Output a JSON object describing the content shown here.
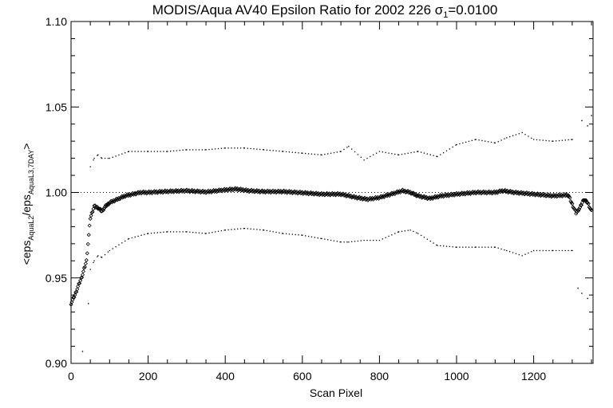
{
  "chart_data": {
    "type": "scatter",
    "title_prefix": "MODIS/Aqua AV40 Epsilon Ratio for 2002 226 ",
    "title_sigma_symbol": "σ",
    "title_sigma_sub": "1",
    "title_sigma_value": "=0.0100",
    "xlabel": "Scan Pixel",
    "ylabel_parts": {
      "open": "<eps",
      "sub1": "AquaL2",
      "mid": "/eps",
      "sub2": "AquaL3,7DAY",
      "close": ">"
    },
    "xlim": [
      0,
      1354
    ],
    "ylim": [
      0.9,
      1.1
    ],
    "x_ticks": [
      0,
      200,
      400,
      600,
      800,
      1000,
      1200
    ],
    "x_tick_labels": [
      "0",
      "200",
      "400",
      "600",
      "800",
      "1000",
      "1200"
    ],
    "y_ticks": [
      0.9,
      0.95,
      1.0,
      1.05,
      1.1
    ],
    "y_tick_labels": [
      "0.90",
      "0.95",
      "1.00",
      "1.05",
      "1.10"
    ],
    "reference_line": 1.0,
    "grid": false,
    "series": [
      {
        "style": "diamond",
        "x": [
          0,
          10,
          20,
          30,
          40,
          50,
          60,
          70,
          80,
          90,
          100,
          120,
          140,
          160,
          180,
          200,
          250,
          300,
          350,
          400,
          430,
          460,
          500,
          550,
          600,
          650,
          700,
          740,
          770,
          800,
          830,
          860,
          880,
          900,
          930,
          960,
          1000,
          1050,
          1100,
          1120,
          1150,
          1200,
          1250,
          1290,
          1300,
          1310,
          1320,
          1330,
          1340,
          1350
        ],
        "y": [
          0.935,
          0.94,
          0.946,
          0.952,
          0.96,
          0.985,
          0.992,
          0.991,
          0.989,
          0.992,
          0.994,
          0.996,
          0.998,
          0.999,
          1.0,
          1.0,
          1.0006,
          1.001,
          1.0003,
          1.0015,
          1.002,
          1.001,
          1.0005,
          1.0005,
          0.9998,
          0.999,
          0.999,
          0.997,
          0.996,
          0.997,
          0.999,
          1.001,
          1.0,
          0.998,
          0.9965,
          0.998,
          0.999,
          1.0,
          1.0,
          1.001,
          1.0,
          0.999,
          0.998,
          0.9985,
          0.993,
          0.988,
          0.991,
          0.996,
          0.994,
          0.989
        ]
      },
      {
        "style": "dot",
        "x": [
          50,
          60,
          70,
          80,
          100,
          150,
          200,
          250,
          300,
          350,
          400,
          450,
          500,
          550,
          600,
          650,
          700,
          720,
          760,
          800,
          850,
          900,
          950,
          1000,
          1050,
          1100,
          1130,
          1170,
          1200,
          1250,
          1300
        ],
        "y": [
          1.015,
          1.02,
          1.022,
          1.02,
          1.02,
          1.024,
          1.024,
          1.024,
          1.025,
          1.025,
          1.026,
          1.026,
          1.025,
          1.024,
          1.023,
          1.022,
          1.024,
          1.027,
          1.019,
          1.024,
          1.022,
          1.024,
          1.021,
          1.028,
          1.031,
          1.029,
          1.032,
          1.035,
          1.031,
          1.03,
          1.031
        ]
      },
      {
        "style": "dot",
        "x": [
          50,
          60,
          70,
          80,
          100,
          150,
          200,
          250,
          300,
          350,
          400,
          450,
          500,
          550,
          600,
          650,
          700,
          720,
          760,
          800,
          850,
          880,
          900,
          950,
          1000,
          1050,
          1100,
          1130,
          1170,
          1200,
          1250,
          1300
        ],
        "y": [
          0.955,
          0.96,
          0.963,
          0.962,
          0.966,
          0.973,
          0.976,
          0.977,
          0.977,
          0.976,
          0.978,
          0.979,
          0.978,
          0.976,
          0.975,
          0.973,
          0.971,
          0.971,
          0.972,
          0.972,
          0.977,
          0.978,
          0.976,
          0.969,
          0.968,
          0.968,
          0.968,
          0.966,
          0.963,
          0.966,
          0.966,
          0.966
        ]
      }
    ],
    "outliers": [
      {
        "x": 30,
        "y": 0.907
      },
      {
        "x": 45,
        "y": 0.935
      },
      {
        "x": 1315,
        "y": 0.944
      },
      {
        "x": 1325,
        "y": 0.941
      },
      {
        "x": 1340,
        "y": 0.938
      },
      {
        "x": 1325,
        "y": 1.042
      },
      {
        "x": 1340,
        "y": 1.039
      },
      {
        "x": 1350,
        "y": 1.045
      }
    ]
  }
}
